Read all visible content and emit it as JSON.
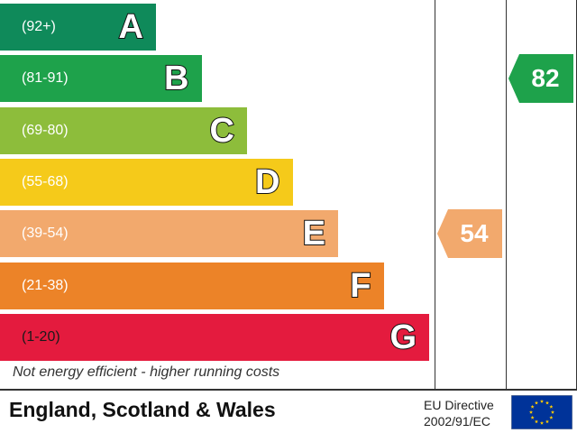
{
  "chart_data": {
    "type": "bar",
    "categories": [
      "A",
      "B",
      "C",
      "D",
      "E",
      "F",
      "G"
    ],
    "ranges": [
      "(92+)",
      "(81-91)",
      "(69-80)",
      "(55-68)",
      "(39-54)",
      "(21-38)",
      "(1-20)"
    ],
    "colors": [
      "#0f8a5a",
      "#1ea24b",
      "#8dbd3b",
      "#f5ca1a",
      "#f2a96d",
      "#ec8328",
      "#e41b3e"
    ],
    "current": {
      "value": 54,
      "band": "E",
      "color": "#f2a96d"
    },
    "potential": {
      "value": 82,
      "band": "B",
      "color": "#1ea24b"
    },
    "footer_note": "Not energy efficient - higher running costs"
  },
  "footer": {
    "region": "England, Scotland & Wales",
    "directive_line1": "EU Directive",
    "directive_line2": "2002/91/EC",
    "flag_color": "#003399",
    "star_color": "#ffcc00"
  }
}
